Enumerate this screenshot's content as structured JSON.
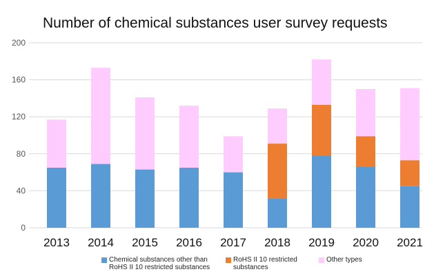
{
  "chart_data": {
    "type": "bar",
    "stacked": true,
    "title": "Number of chemical substances user survey requests",
    "categories": [
      "2013",
      "2014",
      "2015",
      "2016",
      "2017",
      "2018",
      "2019",
      "2020",
      "2021"
    ],
    "series": [
      {
        "name": "Chemical substances other than RoHS II 10 restricted substances",
        "legend_lines": [
          "Chemical substances other than",
          "RoHS II 10 restricted substances"
        ],
        "color": "#5b9bd5",
        "values": [
          65,
          69,
          63,
          65,
          60,
          32,
          78,
          66,
          45
        ]
      },
      {
        "name": "RoHS II 10 restricted substances",
        "legend_lines": [
          "RoHS II 10 restricted",
          "substances"
        ],
        "color": "#ed7d31",
        "values": [
          0,
          0,
          0,
          0,
          0,
          59,
          55,
          33,
          28
        ]
      },
      {
        "name": "Other types",
        "legend_lines": [
          "Other types"
        ],
        "color": "#ffccff",
        "values": [
          52,
          104,
          78,
          67,
          39,
          38,
          49,
          51,
          78
        ]
      }
    ],
    "ylim": [
      0,
      200
    ],
    "yticks": [
      "0",
      "40",
      "80",
      "120",
      "160",
      "200"
    ],
    "grid": true,
    "legend_position": "bottom",
    "gridline_color": "#d9d9d9"
  }
}
